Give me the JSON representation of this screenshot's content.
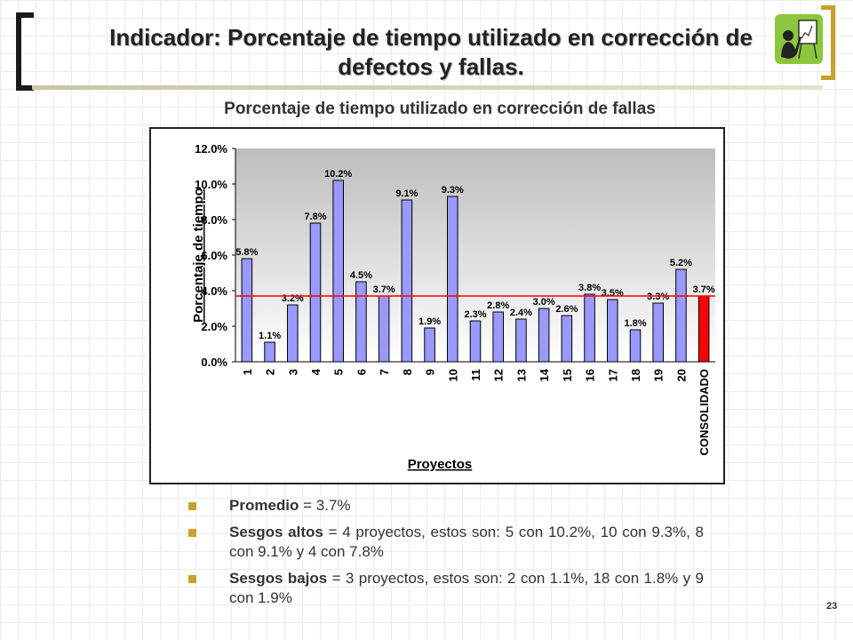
{
  "slide": {
    "title": "Indicador: Porcentaje de tiempo utilizado en corrección de defectos y fallas.",
    "page_number": "23"
  },
  "colors": {
    "bar": "#9999ff",
    "highlight_bar": "#ff0000",
    "average_line": "#ff0000",
    "accent": "#c7a22b",
    "icon_background": "#8cc63e"
  },
  "icons": {
    "presenter": "presenter-whiteboard-icon"
  },
  "chart_data": {
    "type": "bar",
    "title": "Porcentaje de tiempo utilizado en corrección de fallas",
    "xlabel": "Proyectos",
    "ylabel": "Porcentaje de tiempo",
    "categories": [
      "1",
      "2",
      "3",
      "4",
      "5",
      "6",
      "7",
      "8",
      "9",
      "10",
      "11",
      "12",
      "13",
      "14",
      "15",
      "16",
      "17",
      "18",
      "19",
      "20",
      "CONSOLIDADO"
    ],
    "values": [
      5.8,
      1.1,
      3.2,
      7.8,
      10.2,
      4.5,
      3.7,
      9.1,
      1.9,
      9.3,
      2.3,
      2.8,
      2.4,
      3.0,
      2.6,
      3.8,
      3.5,
      1.8,
      3.3,
      5.2,
      3.7
    ],
    "labels": [
      "5.8%",
      "1.1%",
      "3.2%",
      "7.8%",
      "10.2%",
      "4.5%",
      "3.7%",
      "9.1%",
      "1.9%",
      "9.3%",
      "2.3%",
      "2.8%",
      "2.4%",
      "3.0%",
      "2.6%",
      "3.8%",
      "3.5%",
      "1.8%",
      "3.3%",
      "5.2%",
      "3.7%"
    ],
    "yticks": [
      "0.0%",
      "2.0%",
      "4.0%",
      "6.0%",
      "8.0%",
      "10.0%",
      "12.0%"
    ],
    "ylim": [
      0,
      12
    ],
    "average_line": 3.7,
    "highlight_category": "CONSOLIDADO",
    "grid": false,
    "legend": "none"
  },
  "bullets": [
    {
      "label": "Promedio",
      "text": " = 3.7%"
    },
    {
      "label": "Sesgos altos",
      "text": " = 4 proyectos, estos son: 5 con 10.2%, 10 con 9.3%, 8 con 9.1% y 4 con 7.8%"
    },
    {
      "label": "Sesgos bajos",
      "text": " = 3 proyectos, estos son:  2 con 1.1%, 18 con 1.8% y 9 con 1.9%"
    }
  ]
}
